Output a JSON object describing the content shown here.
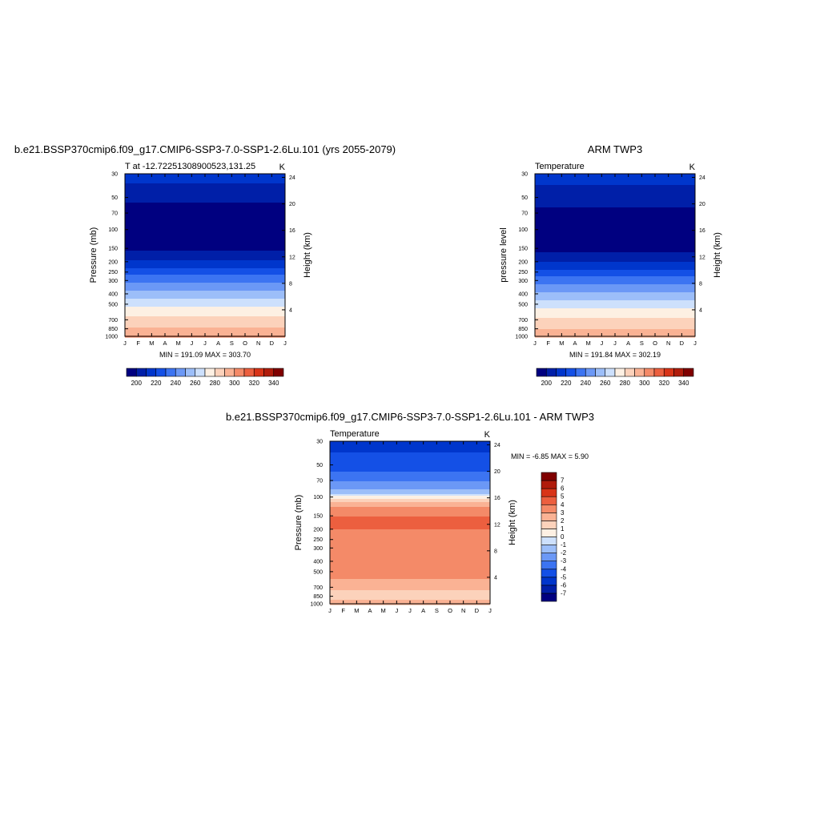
{
  "chart_data": [
    {
      "type": "heatmap",
      "id": "model",
      "title": "b.e21.BSSP370cmip6.f09_g17.CMIP6-SSP3-7.0-SSP1-2.6Lu.101 (yrs 2055-2079)",
      "left_label": "T at -12.72251308900523,131.25",
      "right_label": "K",
      "ylabel": "Pressure (mb)",
      "ylabel_right": "Height (km)",
      "x_ticks": [
        "J",
        "F",
        "M",
        "A",
        "M",
        "J",
        "J",
        "A",
        "S",
        "O",
        "N",
        "D",
        "J"
      ],
      "y_ticks": [
        "30",
        "50",
        "70",
        "100",
        "150",
        "200",
        "250",
        "300",
        "400",
        "500",
        "700",
        "850",
        "1000"
      ],
      "y2_ticks": [
        "24",
        "20",
        "16",
        "12",
        "8",
        "4"
      ],
      "ylim": [
        1000,
        30
      ],
      "stats": "MIN = 191.09 MAX = 303.70",
      "colorbar": {
        "ticks": [
          "200",
          "220",
          "240",
          "260",
          "280",
          "300",
          "320",
          "340"
        ],
        "levels": [
          190,
          200,
          210,
          220,
          230,
          240,
          250,
          260,
          270,
          280,
          290,
          300,
          310,
          320,
          330,
          340,
          350
        ]
      },
      "profile": {
        "pressure": [
          30,
          40,
          50,
          70,
          100,
          150,
          200,
          250,
          300,
          400,
          500,
          600,
          700,
          850,
          925,
          1000
        ],
        "values": [
          215,
          208,
          202,
          196,
          194,
          198,
          212,
          226,
          238,
          254,
          268,
          276,
          283,
          292,
          296,
          301
        ]
      }
    },
    {
      "type": "heatmap",
      "id": "obs",
      "title": "ARM TWP3",
      "left_label": "Temperature",
      "right_label": "K",
      "ylabel": "pressure level",
      "ylabel_right": "Height (km)",
      "x_ticks": [
        "J",
        "F",
        "M",
        "A",
        "M",
        "J",
        "J",
        "A",
        "S",
        "O",
        "N",
        "D",
        "J"
      ],
      "y_ticks": [
        "30",
        "50",
        "70",
        "100",
        "150",
        "200",
        "250",
        "300",
        "400",
        "500",
        "700",
        "850",
        "1000"
      ],
      "y2_ticks": [
        "24",
        "20",
        "16",
        "12",
        "8",
        "4"
      ],
      "ylim": [
        1000,
        30
      ],
      "stats": "MIN = 191.84 MAX = 302.19",
      "colorbar": {
        "ticks": [
          "200",
          "220",
          "240",
          "260",
          "280",
          "300",
          "320",
          "340"
        ],
        "levels": [
          190,
          200,
          210,
          220,
          230,
          240,
          250,
          260,
          270,
          280,
          290,
          300,
          310,
          320,
          330,
          340,
          350
        ]
      },
      "profile": {
        "pressure": [
          30,
          40,
          50,
          70,
          100,
          150,
          200,
          250,
          300,
          400,
          500,
          600,
          700,
          850,
          925,
          1000
        ],
        "values": [
          216,
          209,
          204,
          198,
          195,
          197,
          210,
          223,
          235,
          252,
          266,
          275,
          283,
          290,
          293,
          296
        ]
      }
    },
    {
      "type": "heatmap",
      "id": "diff",
      "title": "b.e21.BSSP370cmip6.f09_g17.CMIP6-SSP3-7.0-SSP1-2.6Lu.101 - ARM TWP3",
      "left_label": "Temperature",
      "right_label": "K",
      "ylabel": "Pressure (mb)",
      "ylabel_right": "Height (km)",
      "x_ticks": [
        "J",
        "F",
        "M",
        "A",
        "M",
        "J",
        "J",
        "A",
        "S",
        "O",
        "N",
        "D",
        "J"
      ],
      "y_ticks": [
        "30",
        "50",
        "70",
        "100",
        "150",
        "200",
        "250",
        "300",
        "400",
        "500",
        "700",
        "850",
        "1000"
      ],
      "y2_ticks": [
        "24",
        "20",
        "16",
        "12",
        "8",
        "4"
      ],
      "ylim": [
        1000,
        30
      ],
      "stats": "MIN =  -6.85 MAX =   5.90",
      "colorbar": {
        "ticks": [
          "7",
          "6",
          "5",
          "4",
          "3",
          "2",
          "1",
          "0",
          "-1",
          "-2",
          "-3",
          "-4",
          "-5",
          "-6",
          "-7"
        ],
        "levels": [
          -8,
          -7,
          -6,
          -5,
          -4,
          -3,
          -2,
          -1,
          0,
          1,
          2,
          3,
          4,
          5,
          6,
          7,
          8
        ]
      },
      "profile": {
        "pressure": [
          30,
          50,
          70,
          90,
          100,
          110,
          130,
          150,
          200,
          300,
          500,
          700,
          850,
          1000
        ],
        "values": [
          -5.5,
          -4.5,
          -3.2,
          -1.5,
          0.5,
          2.0,
          3.6,
          4.0,
          4.0,
          3.7,
          3.6,
          2.4,
          1.4,
          2.5
        ]
      }
    }
  ],
  "colors": {
    "temperature_scale": [
      "#000080",
      "#001fa8",
      "#0036cc",
      "#1450e6",
      "#3c74f2",
      "#6b98f6",
      "#9cbef9",
      "#cde0fc",
      "#fdf0e3",
      "#fcd2bb",
      "#fab294",
      "#f48a68",
      "#ec5f3f",
      "#d83418",
      "#b01c0c",
      "#800000"
    ],
    "difference_scale": [
      "#000080",
      "#001fa8",
      "#0036cc",
      "#1450e6",
      "#3c74f2",
      "#6b98f6",
      "#9cbef9",
      "#cde0fc",
      "#fdf0e3",
      "#fcd2bb",
      "#fab294",
      "#f48a68",
      "#ec5f3f",
      "#d83418",
      "#b01c0c",
      "#800000"
    ]
  }
}
